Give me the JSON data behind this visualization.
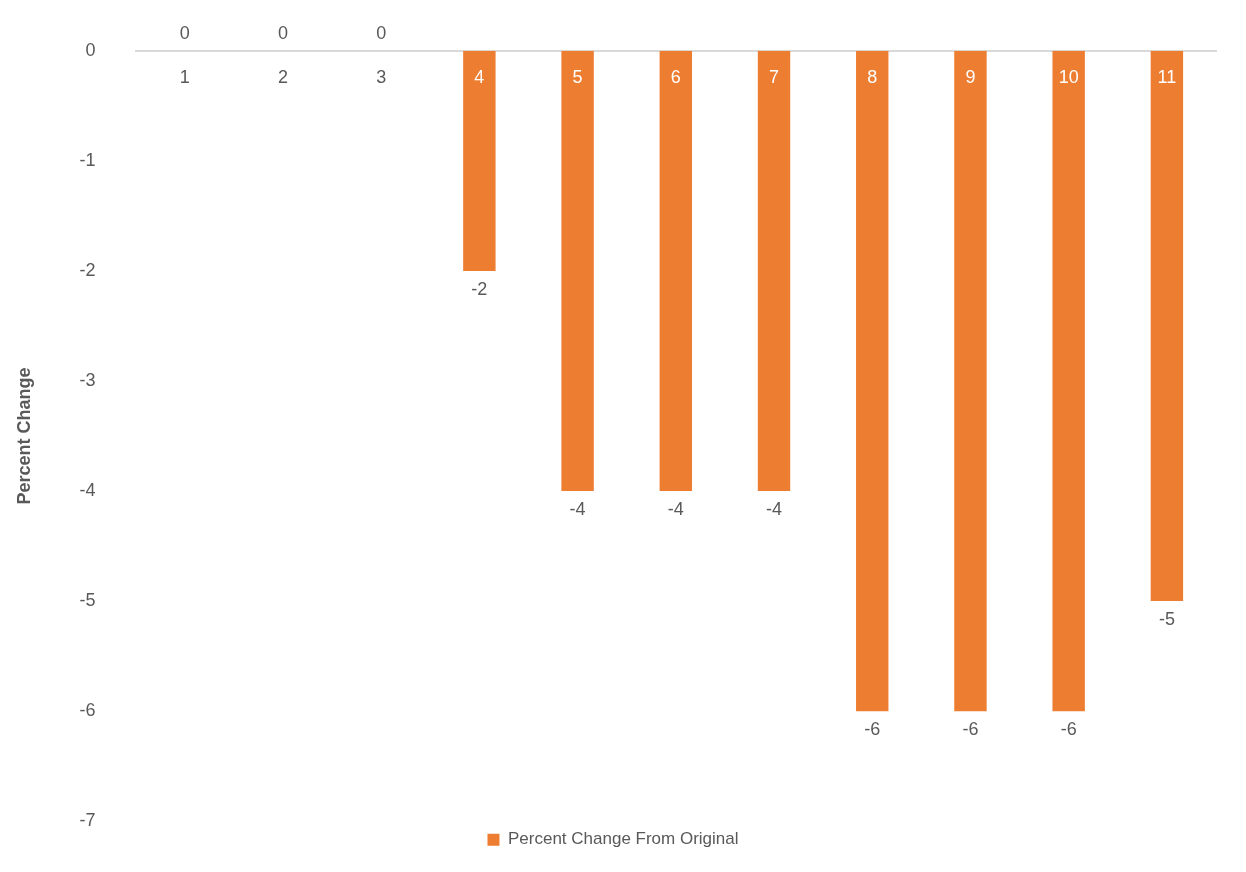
{
  "chart_data": {
    "type": "bar",
    "ylabel": "Percent Change",
    "categories": [
      "1",
      "2",
      "3",
      "4",
      "5",
      "6",
      "7",
      "8",
      "9",
      "10",
      "11"
    ],
    "series": [
      {
        "name": "Percent Change From Original",
        "color": "#ed7d31",
        "values": [
          0,
          0,
          0,
          -2,
          -4,
          -4,
          -4,
          -6,
          -6,
          -6,
          -5
        ]
      }
    ],
    "ylim": [
      -7,
      0
    ],
    "yticks": [
      0,
      -1,
      -2,
      -3,
      -4,
      -5,
      -6,
      -7
    ],
    "grid": false,
    "legend": "bottom",
    "data_labels": true
  }
}
